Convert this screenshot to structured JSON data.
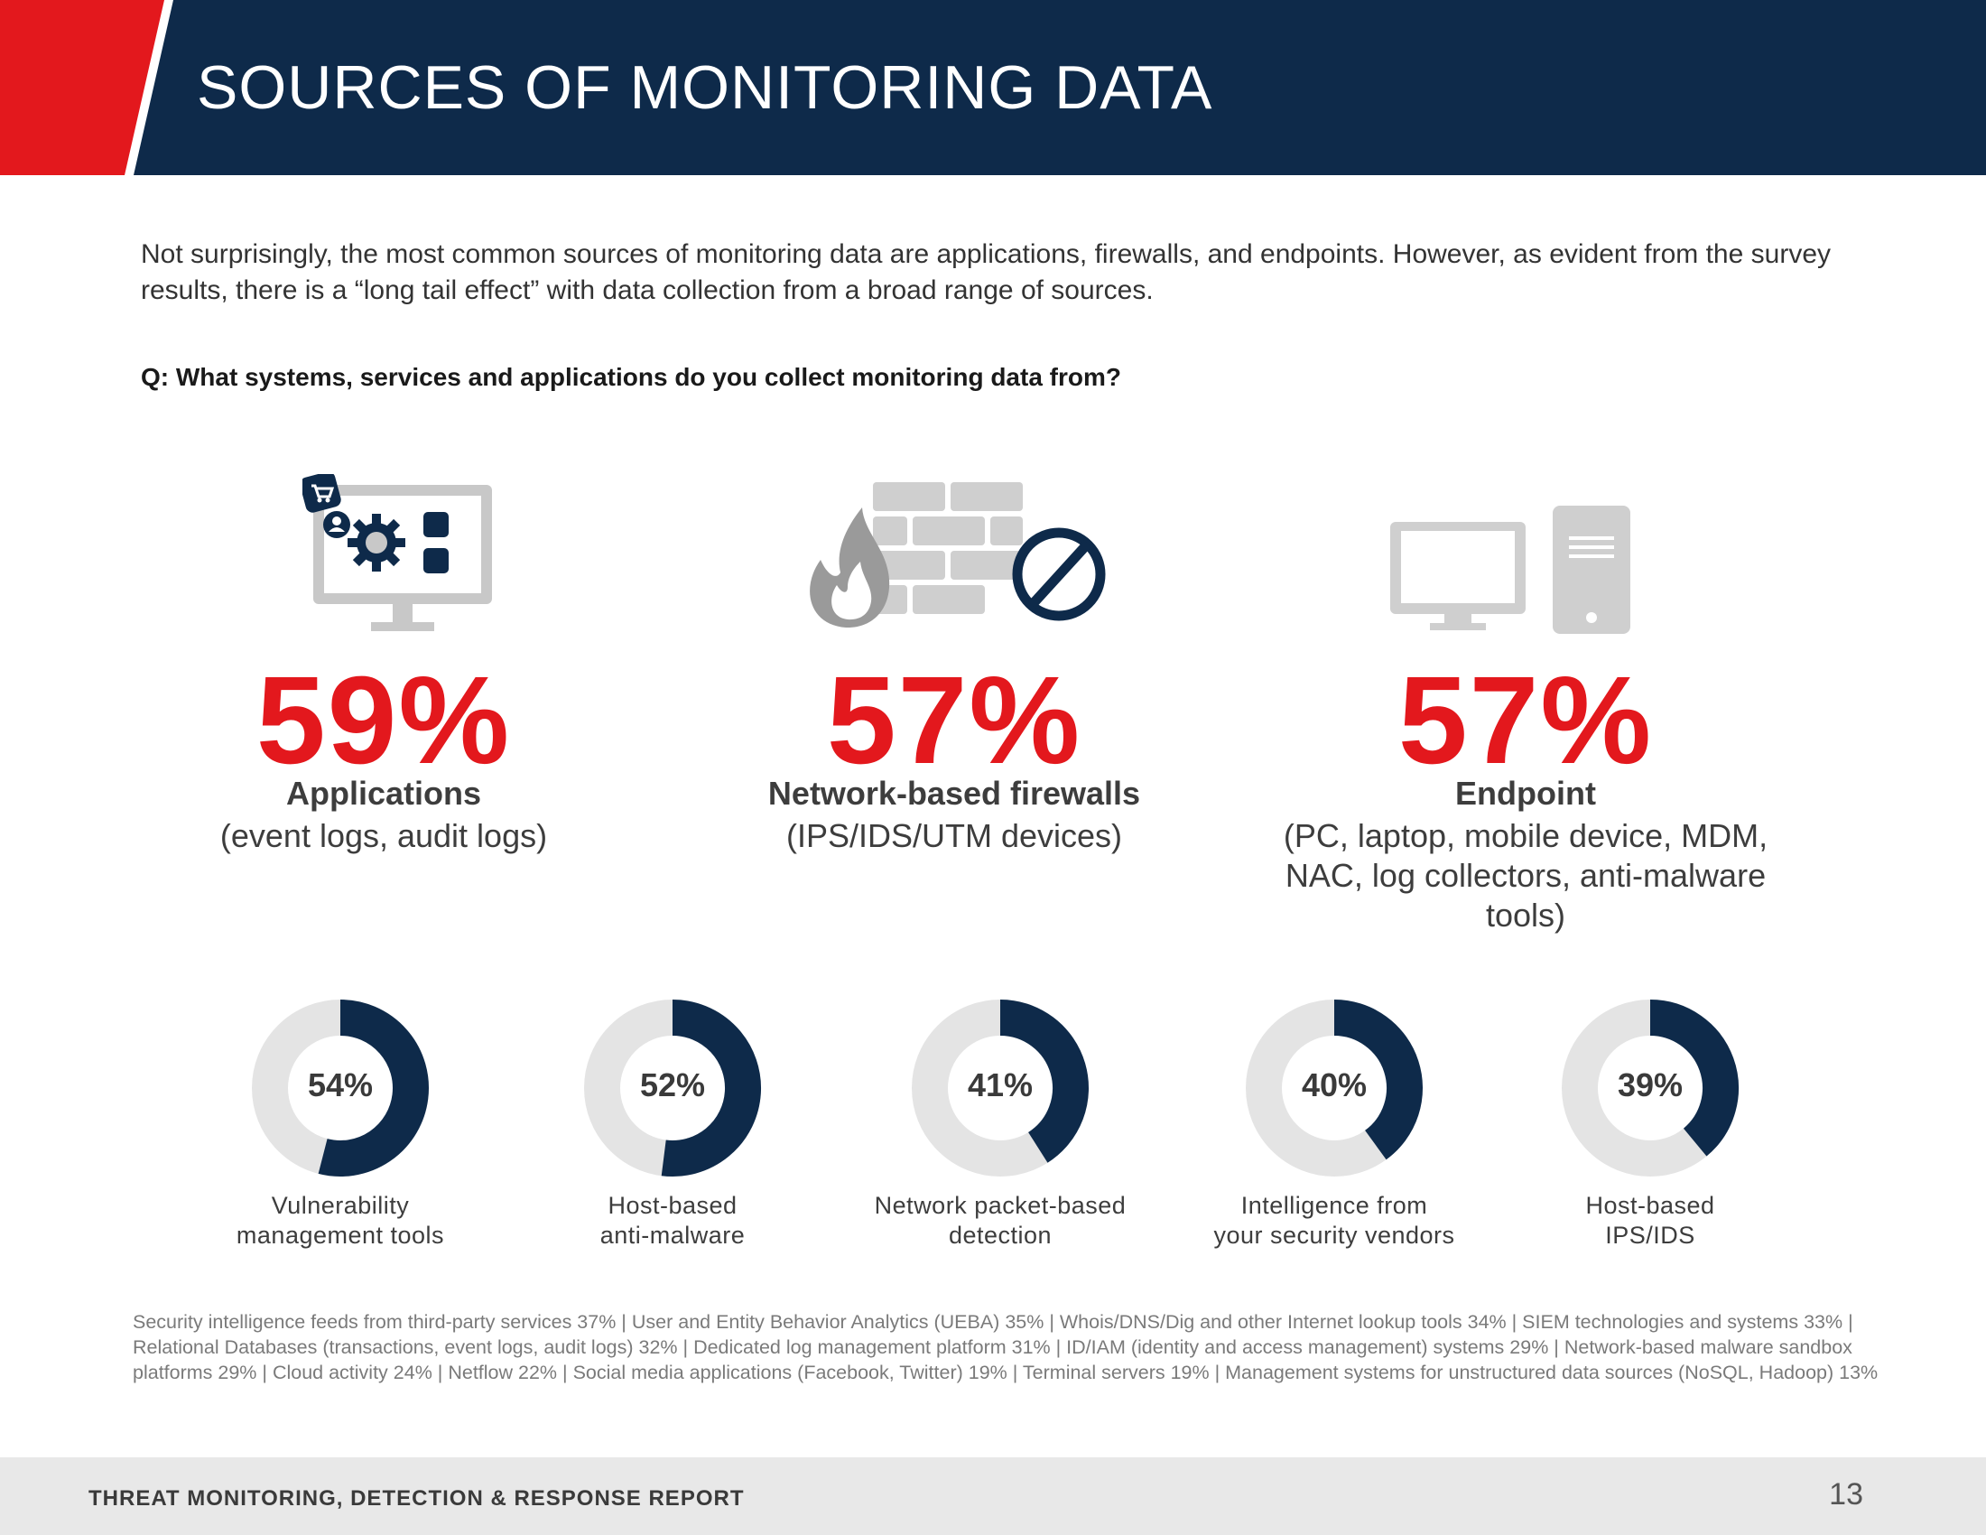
{
  "header": {
    "title": "SOURCES OF MONITORING DATA"
  },
  "intro": "Not surprisingly, the most common sources of monitoring data are applications, firewalls, and endpoints. However, as evident from the survey results, there is a “long tail effect” with data collection from a broad range of sources.",
  "question": "Q: What systems, services and applications do you collect monitoring data from?",
  "top_stats": [
    {
      "value": "59%",
      "name": "Applications",
      "desc": "(event logs, audit logs)",
      "icon": "application-monitor-icon"
    },
    {
      "value": "57%",
      "name": "Network-based firewalls",
      "desc": "(IPS/IDS/UTM devices)",
      "icon": "firewall-icon"
    },
    {
      "value": "57%",
      "name": "Endpoint",
      "desc": "(PC, laptop, mobile device, MDM, NAC, log collectors, anti-malware tools)",
      "icon": "desktop-computer-icon"
    }
  ],
  "donuts": [
    {
      "label": "54%",
      "value": 54,
      "line1": "Vulnerability",
      "line2": "management tools"
    },
    {
      "label": "52%",
      "value": 52,
      "line1": "Host-based",
      "line2": "anti-malware"
    },
    {
      "label": "41%",
      "value": 41,
      "line1": "Network packet-based",
      "line2": "detection"
    },
    {
      "label": "40%",
      "value": 40,
      "line1": "Intelligence from",
      "line2": "your security vendors"
    },
    {
      "label": "39%",
      "value": 39,
      "line1": "Host-based",
      "line2": "IPS/IDS"
    }
  ],
  "colors": {
    "navy": "#0e2a4a",
    "red": "#e3181d",
    "ring_bg": "#e4e4e4",
    "icon_gray": "#c8c8c8"
  },
  "footnote": "Security intelligence feeds from third-party services 37%  |  User and Entity Behavior Analytics (UEBA) 35%  | Whois/DNS/Dig and other Internet lookup tools  34%  |  SIEM technologies and systems 33%  |  Relational Databases (transactions, event logs, audit logs) 32%  |  Dedicated log management platform 31%  |  ID/IAM (identity and access management) systems 29%  |  Network-based malware sandbox platforms 29%  |  Cloud activity 24%  |  Netflow 22%  |  Social media applications (Facebook, Twitter) 19%  |  Terminal servers 19%  |  Management systems for unstructured data sources (NoSQL, Hadoop)  13%",
  "footer": {
    "title": "THREAT MONITORING, DETECTION & RESPONSE REPORT",
    "page": "13"
  }
}
